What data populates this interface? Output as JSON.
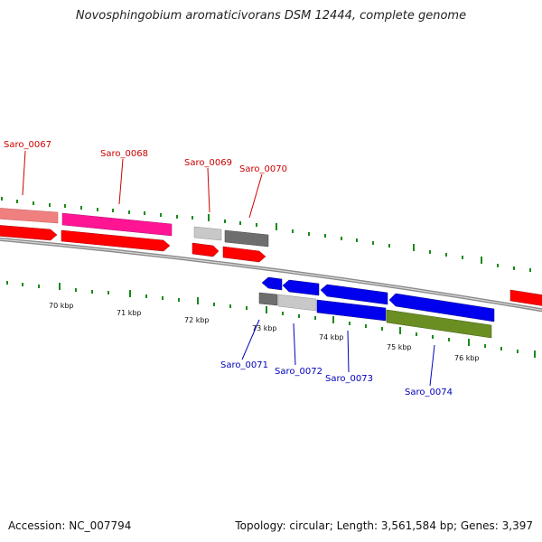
{
  "title": "Novosphingobium aromaticivorans DSM 12444, complete genome",
  "footer": {
    "accession": "Accession: NC_007794",
    "topology": "Topology: circular; Length: 3,561,584 bp; Genes: 3,397"
  },
  "kbp_labels": [
    "70 kbp",
    "71 kbp",
    "72 kbp",
    "73 kbp",
    "74 kbp",
    "75 kbp",
    "76 kbp"
  ],
  "top_genes": [
    "Saro_0067",
    "Saro_0068",
    "Saro_0069",
    "Saro_0070"
  ],
  "bottom_genes": [
    "Saro_0071",
    "Saro_0072",
    "Saro_0073",
    "Saro_0074"
  ],
  "colors": {
    "forward_cds": "#ff0000",
    "reverse_cds": "#0000ee",
    "pink_feature": "#ff1493",
    "salmon_feature": "#f08080",
    "grey_feature": "#888888",
    "light_grey_feature": "#c8c8c8",
    "olive_feature": "#6b8e23",
    "tick": "#1a8a1a",
    "backbone": "#8a8a8a"
  }
}
